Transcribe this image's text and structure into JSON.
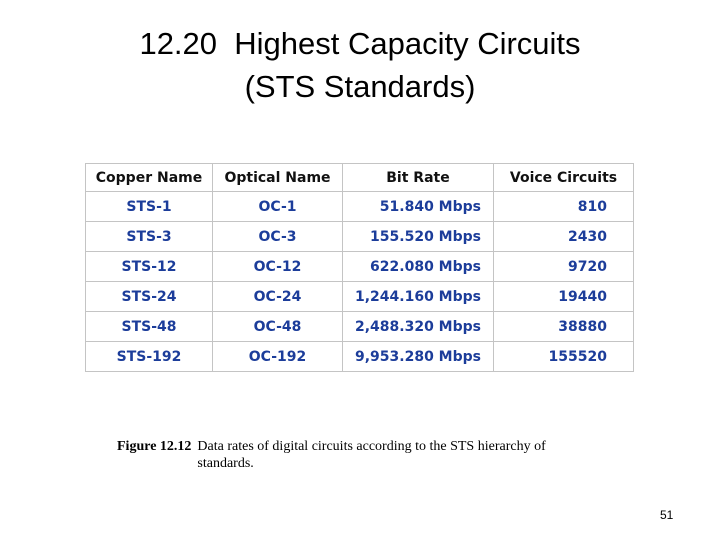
{
  "slide": {
    "title_lines": [
      "12.20  Highest Capacity Circuits",
      "(STS Standards)"
    ],
    "table": {
      "header": [
        "Copper Name",
        "Optical Name",
        "Bit Rate",
        "Voice Circuits"
      ],
      "rows": [
        [
          "STS-1",
          "OC-1",
          "51.840 Mbps",
          "810"
        ],
        [
          "STS-3",
          "OC-3",
          "155.520 Mbps",
          "2430"
        ],
        [
          "STS-12",
          "OC-12",
          "622.080 Mbps",
          "9720"
        ],
        [
          "STS-24",
          "OC-24",
          "1,244.160 Mbps",
          "19440"
        ],
        [
          "STS-48",
          "OC-48",
          "2,488.320 Mbps",
          "38880"
        ],
        [
          "STS-192",
          "OC-192",
          "9,953.280 Mbps",
          "155520"
        ]
      ]
    },
    "caption": {
      "label": "Figure 12.12",
      "text": "Data rates of digital circuits according to the STS hierarchy of standards."
    },
    "page_number": "51"
  }
}
